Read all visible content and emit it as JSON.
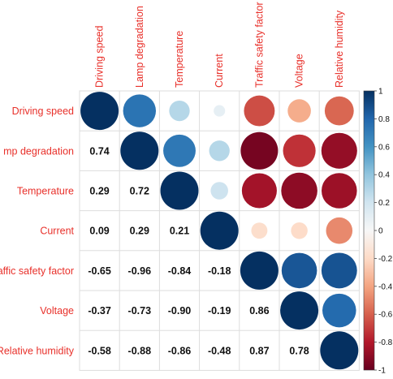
{
  "chart_data": {
    "type": "heatmap",
    "variables": [
      "Driving speed",
      "Lamp degradation",
      "Temperature",
      "Current",
      "Traffic safety factor",
      "Voltage",
      "Relative humidity"
    ],
    "row_labels_visible": [
      "Driving speed",
      "mp degradation",
      "Temperature",
      "Current",
      "affic safety factor",
      "Voltage",
      "Relative humidity"
    ],
    "matrix": [
      [
        1.0,
        0.74,
        0.29,
        0.09,
        -0.65,
        -0.37,
        -0.58
      ],
      [
        0.74,
        1.0,
        0.72,
        0.29,
        -0.96,
        -0.73,
        -0.88
      ],
      [
        0.29,
        0.72,
        1.0,
        0.21,
        -0.84,
        -0.9,
        -0.86
      ],
      [
        0.09,
        0.29,
        0.21,
        1.0,
        -0.18,
        -0.19,
        -0.48
      ],
      [
        -0.65,
        -0.96,
        -0.84,
        -0.18,
        1.0,
        0.86,
        0.87
      ],
      [
        -0.37,
        -0.73,
        -0.9,
        -0.19,
        0.86,
        1.0,
        0.78
      ],
      [
        -0.58,
        -0.88,
        -0.86,
        -0.48,
        0.87,
        0.78,
        1.0
      ]
    ],
    "lower_labels": [
      [
        "",
        "",
        "",
        "",
        "",
        "",
        ""
      ],
      [
        "0.74",
        "",
        "",
        "",
        "",
        "",
        ""
      ],
      [
        "0.29",
        "0.72",
        "",
        "",
        "",
        "",
        ""
      ],
      [
        "0.09",
        "0.29",
        "0.21",
        "",
        "",
        "",
        ""
      ],
      [
        "-0.65",
        "-0.96",
        "-0.84",
        "-0.18",
        "",
        "",
        ""
      ],
      [
        "-0.37",
        "-0.73",
        "-0.90",
        "-0.19",
        "0.86",
        "",
        ""
      ],
      [
        "-0.58",
        "-0.88",
        "-0.86",
        "-0.48",
        "0.87",
        "0.78",
        ""
      ]
    ],
    "colorbar": {
      "range": [
        -1,
        1
      ],
      "ticks": [
        "1",
        "0.8",
        "0.6",
        "0.4",
        "0.2",
        "0",
        "-0.2",
        "-0.4",
        "-0.6",
        "-0.8",
        "-1"
      ]
    },
    "colors": {
      "positive_strong": "#053061",
      "positive_mid": "#4393c3",
      "neutral": "#f7f7f7",
      "negative_mid": "#d6604d",
      "negative_strong": "#67001f",
      "label_text": "#e8302a",
      "grid": "#dddddd"
    }
  }
}
